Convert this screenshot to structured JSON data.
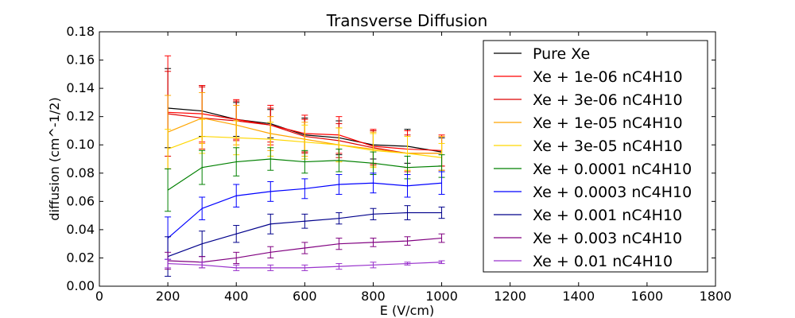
{
  "chart_data": {
    "type": "line",
    "title": "Transverse Diffusion",
    "xlabel": "E (V/cm)",
    "ylabel": "diffusion (cm^-1/2)",
    "xlim": [
      0,
      1800
    ],
    "ylim": [
      0,
      0.18
    ],
    "xticks": [
      0,
      200,
      400,
      600,
      800,
      1000,
      1200,
      1400,
      1600,
      1800
    ],
    "yticks": [
      0.0,
      0.02,
      0.04,
      0.06,
      0.08,
      0.1,
      0.12,
      0.14,
      0.16,
      0.18
    ],
    "xtick_labels": [
      "0",
      "200",
      "400",
      "600",
      "800",
      "1000",
      "1200",
      "1400",
      "1600",
      "1800"
    ],
    "ytick_labels": [
      "0.00",
      "0.02",
      "0.04",
      "0.06",
      "0.08",
      "0.10",
      "0.12",
      "0.14",
      "0.16",
      "0.18"
    ],
    "grid": false,
    "legend_position": "top-right",
    "x": [
      200,
      300,
      400,
      500,
      600,
      700,
      800,
      900,
      1000
    ],
    "series": [
      {
        "name": "Pure Xe",
        "color": "#000000",
        "values": [
          0.126,
          0.124,
          0.118,
          0.115,
          0.107,
          0.105,
          0.1,
          0.099,
          0.095
        ],
        "errors": [
          0.028,
          0.018,
          0.012,
          0.01,
          0.012,
          0.012,
          0.01,
          0.012,
          0.01
        ]
      },
      {
        "name": "Xe + 1e-06 nC4H10",
        "color": "#ff0000",
        "values": [
          0.123,
          0.122,
          0.118,
          0.114,
          0.108,
          0.107,
          0.099,
          0.097,
          0.096
        ],
        "errors": [
          0.04,
          0.02,
          0.014,
          0.014,
          0.013,
          0.013,
          0.012,
          0.013,
          0.011
        ]
      },
      {
        "name": "Xe + 3e-06 nC4H10",
        "color": "#dd0000",
        "values": [
          0.122,
          0.119,
          0.117,
          0.114,
          0.106,
          0.103,
          0.098,
          0.094,
          0.094
        ],
        "errors": [
          0.03,
          0.022,
          0.014,
          0.012,
          0.012,
          0.012,
          0.012,
          0.013,
          0.012
        ]
      },
      {
        "name": "Xe + 1e-05 nC4H10",
        "color": "#ffa500",
        "values": [
          0.109,
          0.119,
          0.114,
          0.108,
          0.104,
          0.1,
          0.097,
          0.094,
          0.094
        ],
        "errors": [
          0.026,
          0.018,
          0.014,
          0.012,
          0.012,
          0.012,
          0.012,
          0.012,
          0.012
        ]
      },
      {
        "name": "Xe + 3e-05 nC4H10",
        "color": "#ffd700",
        "values": [
          0.097,
          0.106,
          0.105,
          0.104,
          0.102,
          0.1,
          0.096,
          0.094,
          0.091
        ],
        "errors": [
          0.014,
          0.012,
          0.012,
          0.012,
          0.012,
          0.012,
          0.012,
          0.012,
          0.01
        ]
      },
      {
        "name": "Xe + 0.0001 nC4H10",
        "color": "#008000",
        "values": [
          0.068,
          0.084,
          0.088,
          0.09,
          0.088,
          0.089,
          0.087,
          0.084,
          0.085
        ],
        "errors": [
          0.015,
          0.012,
          0.01,
          0.008,
          0.008,
          0.008,
          0.008,
          0.008,
          0.008
        ]
      },
      {
        "name": "Xe + 0.0003 nC4H10",
        "color": "#0000ff",
        "values": [
          0.034,
          0.055,
          0.064,
          0.067,
          0.069,
          0.072,
          0.073,
          0.071,
          0.073
        ],
        "errors": [
          0.015,
          0.008,
          0.008,
          0.007,
          0.007,
          0.007,
          0.007,
          0.008,
          0.008
        ]
      },
      {
        "name": "Xe + 0.001 nC4H10",
        "color": "#00008b",
        "values": [
          0.021,
          0.03,
          0.037,
          0.044,
          0.046,
          0.048,
          0.051,
          0.052,
          0.052
        ],
        "errors": [
          0.014,
          0.009,
          0.006,
          0.007,
          0.005,
          0.004,
          0.004,
          0.005,
          0.004
        ]
      },
      {
        "name": "Xe + 0.003 nC4H10",
        "color": "#800080",
        "values": [
          0.018,
          0.017,
          0.02,
          0.024,
          0.027,
          0.03,
          0.031,
          0.032,
          0.034
        ],
        "errors": [
          0.006,
          0.004,
          0.004,
          0.004,
          0.004,
          0.004,
          0.003,
          0.003,
          0.003
        ]
      },
      {
        "name": "Xe + 0.01 nC4H10",
        "color": "#9932cc",
        "values": [
          0.016,
          0.015,
          0.013,
          0.013,
          0.013,
          0.014,
          0.015,
          0.016,
          0.017
        ],
        "errors": [
          0.003,
          0.002,
          0.002,
          0.002,
          0.002,
          0.002,
          0.002,
          0.001,
          0.001
        ]
      }
    ]
  }
}
